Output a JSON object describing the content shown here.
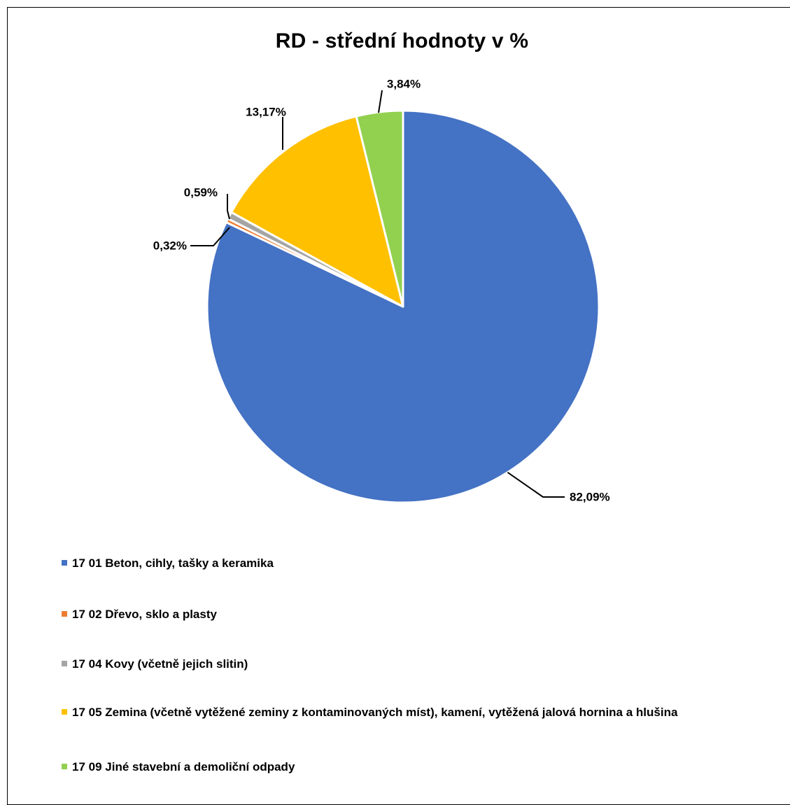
{
  "chart_data": {
    "type": "pie",
    "title": "RD - střední hodnoty v %",
    "series": [
      {
        "label": "17 01 Beton, cihly, tašky a keramika",
        "value": 82.09,
        "display": "82,09%",
        "color": "#4472C4"
      },
      {
        "label": "17 02 Dřevo, sklo a plasty",
        "value": 0.32,
        "display": "0,32%",
        "color": "#ED7D31"
      },
      {
        "label": "17 04 Kovy (včetně jejich slitin)",
        "value": 0.59,
        "display": "0,59%",
        "color": "#A5A5A5"
      },
      {
        "label": "17 05 Zemina (včetně vytěžené zeminy z kontaminovaných míst), kamení, vytěžená jalová hornina a hlušina",
        "value": 13.17,
        "display": "13,17%",
        "color": "#FFC000"
      },
      {
        "label": "17 09 Jiné stavební a demoliční odpady",
        "value": 3.84,
        "display": "3,84%",
        "color": "#92D050"
      }
    ],
    "start_angle": "12 o'clock",
    "direction": "clockwise",
    "legend_position": "bottom"
  }
}
